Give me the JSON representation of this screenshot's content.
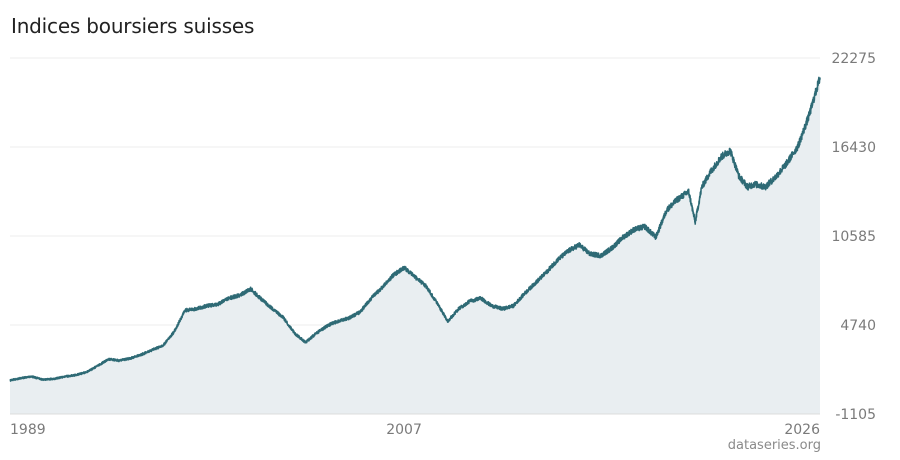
{
  "chart_data": {
    "type": "area",
    "title": "Indices boursiers suisses",
    "xlabel": "",
    "ylabel": "",
    "x_ticks": [
      "1989",
      "2007",
      "2026"
    ],
    "y_ticks": [
      "22275",
      "16430",
      "10585",
      "4740",
      "-1105"
    ],
    "ylim": [
      -1105,
      22275
    ],
    "xlim": [
      1989,
      2026
    ],
    "grid": true,
    "y_axis_side": "right",
    "series": [
      {
        "color": "#2e6a75",
        "fill": "#e9eef1",
        "x": [
          1989,
          1989.5,
          1990,
          1990.5,
          1991,
          1991.5,
          1992,
          1992.5,
          1993,
          1993.5,
          1994,
          1994.5,
          1995,
          1995.5,
          1996,
          1996.5,
          1997,
          1997.5,
          1998,
          1998.5,
          1999,
          1999.5,
          2000,
          2000.5,
          2001,
          2001.5,
          2002,
          2002.5,
          2003,
          2003.5,
          2004,
          2004.5,
          2005,
          2005.5,
          2006,
          2006.5,
          2007,
          2007.5,
          2008,
          2008.5,
          2009,
          2009.5,
          2010,
          2010.5,
          2011,
          2011.5,
          2012,
          2012.5,
          2013,
          2013.5,
          2014,
          2014.5,
          2015,
          2015.5,
          2016,
          2016.5,
          2017,
          2017.5,
          2018,
          2018.5,
          2019,
          2019.5,
          2020,
          2020.3,
          2020.6,
          2021,
          2021.5,
          2021.9,
          2022.3,
          2022.7,
          2023,
          2023.5,
          2024,
          2024.5,
          2025,
          2025.5,
          2026
        ],
        "y": [
          1100,
          1250,
          1350,
          1150,
          1200,
          1350,
          1450,
          1650,
          2050,
          2500,
          2400,
          2550,
          2800,
          3100,
          3400,
          4300,
          5700,
          5800,
          6000,
          6100,
          6500,
          6700,
          7100,
          6400,
          5800,
          5200,
          4200,
          3600,
          4200,
          4700,
          5000,
          5200,
          5600,
          6500,
          7200,
          8000,
          8500,
          7900,
          7300,
          6200,
          5000,
          5800,
          6300,
          6500,
          6000,
          5800,
          6000,
          6800,
          7500,
          8200,
          9000,
          9600,
          10000,
          9400,
          9300,
          9800,
          10500,
          11000,
          11200,
          10500,
          12300,
          13000,
          13500,
          11500,
          13800,
          14800,
          15800,
          16200,
          14500,
          13800,
          14000,
          13800,
          14500,
          15400,
          16500,
          18500,
          21000
        ]
      }
    ],
    "source": "dataseries.org"
  }
}
